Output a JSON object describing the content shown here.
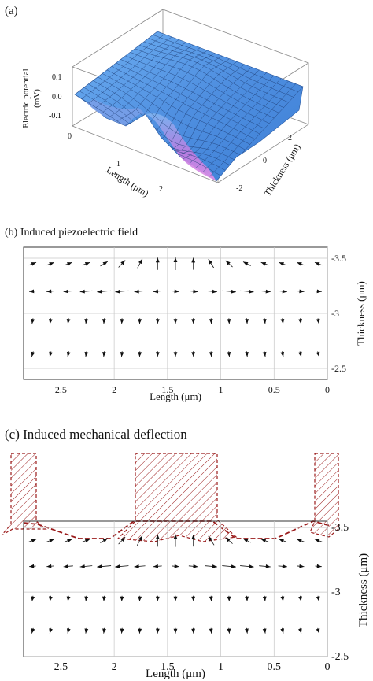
{
  "panel_a": {
    "label": "(a)",
    "zlabel_line1": "Electric potential",
    "zlabel_line2": "(mV)",
    "xlabel": "Length (μm)",
    "ylabel": "Thickness (μm)",
    "z_ticks": [
      "0.1",
      "0.0",
      "-0.1"
    ],
    "x_ticks": [
      "0",
      "1",
      "2"
    ],
    "y_ticks": [
      "2",
      "0",
      "-2"
    ]
  },
  "panel_b": {
    "title": "(b) Induced piezoelectric field",
    "xlabel": "Length (μm)",
    "ylabel": "Thickness (μm)",
    "x_ticks": [
      "2.5",
      "2",
      "1.5",
      "1",
      "0.5",
      "0"
    ],
    "y_ticks": [
      "-3.5",
      "-3",
      "-2.5"
    ]
  },
  "panel_c": {
    "title": "(c) Induced mechanical deflection",
    "xlabel": "Length (μm)",
    "ylabel": "Thickness (μm)",
    "x_ticks": [
      "2.5",
      "2",
      "1.5",
      "1",
      "0.5",
      "0"
    ],
    "y_ticks": [
      "-3.5",
      "-3",
      "-2.5"
    ]
  },
  "chart_data": [
    {
      "type": "surface",
      "xlabel": "Length (μm)",
      "ylabel": "Thickness (μm)",
      "zlabel": "Electric potential (mV)",
      "zlim": [
        -0.15,
        0.15
      ]
    },
    {
      "type": "quiver",
      "title": "(b) Induced piezoelectric field",
      "xlabel": "Length (μm)",
      "ylabel": "Thickness (μm)",
      "xlim": [
        2.85,
        0
      ],
      "ylim": [
        -2.4,
        -3.6
      ],
      "rows_y": [
        -3.45,
        -3.2,
        -2.93,
        -2.63
      ]
    },
    {
      "type": "quiver",
      "title": "(c) Induced mechanical deflection",
      "xlabel": "Length (μm)",
      "ylabel": "Thickness (μm)",
      "xlim": [
        2.85,
        0
      ],
      "ylim": [
        -2.5,
        -3.55
      ],
      "rows_y": [
        -3.4,
        -3.2,
        -2.95,
        -2.7
      ]
    }
  ],
  "colors": {
    "surface_blue": "#4f8fe0",
    "surface_magenta": "#d36adf",
    "deflection_red": "#9b1c1c",
    "arrow": "#111111",
    "grid": "#bfbfbf"
  }
}
